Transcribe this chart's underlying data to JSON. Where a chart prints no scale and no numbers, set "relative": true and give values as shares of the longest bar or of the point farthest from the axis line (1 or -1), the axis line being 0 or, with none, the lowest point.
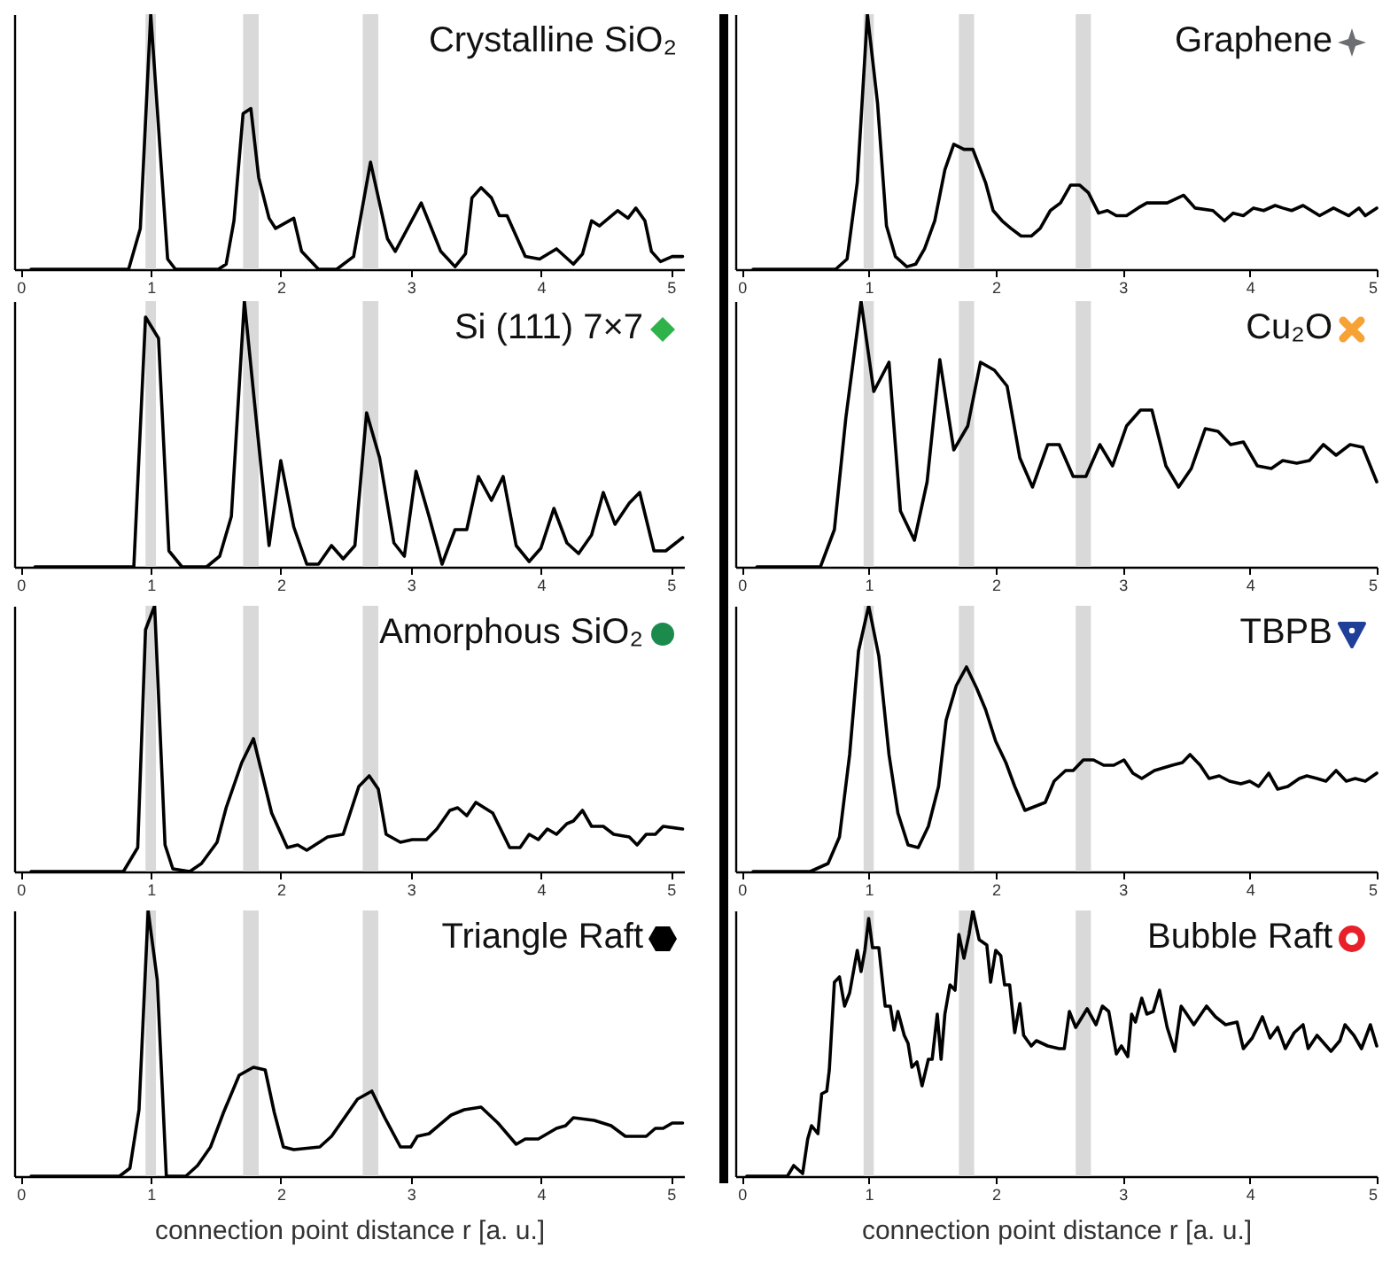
{
  "chart_data": [
    {
      "type": "line",
      "title": "Crystalline SiO₂",
      "relative": true,
      "tick_labels": "x",
      "xlim": [
        -0.05,
        5.1
      ],
      "xticks": [
        0,
        1,
        2,
        3,
        4,
        5
      ],
      "bands": [
        {
          "axis": "x",
          "from": 0.96,
          "to": 1.04,
          "color": "#d9d9d9"
        },
        {
          "axis": "x",
          "from": 1.71,
          "to": 1.83,
          "color": "#d9d9d9"
        },
        {
          "axis": "x",
          "from": 2.63,
          "to": 2.75,
          "color": "#d9d9d9"
        }
      ],
      "x": [
        0.08,
        0.83,
        0.92,
        1.0,
        1.13,
        1.19,
        1.52,
        1.58,
        1.64,
        1.71,
        1.77,
        1.83,
        1.91,
        1.96,
        2.1,
        2.16,
        2.29,
        2.43,
        2.56,
        2.69,
        2.82,
        2.88,
        3.08,
        3.23,
        3.34,
        3.42,
        3.47,
        3.54,
        3.62,
        3.68,
        3.74,
        3.88,
        3.99,
        4.12,
        4.25,
        4.32,
        4.39,
        4.45,
        4.59,
        4.67,
        4.73,
        4.8,
        4.85,
        4.92,
        5.01,
        5.09
      ],
      "series": [
        {
          "color": "#000000",
          "values": [
            0,
            0,
            0.16,
            1,
            0.04,
            0,
            0,
            0.02,
            0.19,
            0.61,
            0.63,
            0.36,
            0.2,
            0.16,
            0.2,
            0.07,
            0,
            0,
            0.05,
            0.42,
            0.12,
            0.07,
            0.26,
            0.07,
            0.01,
            0.06,
            0.28,
            0.32,
            0.28,
            0.21,
            0.21,
            0.05,
            0.04,
            0.08,
            0.02,
            0.06,
            0.19,
            0.17,
            0.23,
            0.2,
            0.24,
            0.19,
            0.07,
            0.03,
            0.05,
            0.05
          ]
        }
      ]
    },
    {
      "type": "line",
      "title": "Graphene",
      "relative": true,
      "tick_labels": "x",
      "xlim": [
        -0.05,
        5.0
      ],
      "xticks": [
        0,
        1,
        2,
        3,
        4,
        5
      ],
      "bands": [
        {
          "axis": "x",
          "from": 0.96,
          "to": 1.04,
          "color": "#d9d9d9"
        },
        {
          "axis": "x",
          "from": 1.71,
          "to": 1.83,
          "color": "#d9d9d9"
        },
        {
          "axis": "x",
          "from": 2.63,
          "to": 2.75,
          "color": "#d9d9d9"
        }
      ],
      "x": [
        0.09,
        0.74,
        0.83,
        0.91,
        0.99,
        1.07,
        1.14,
        1.21,
        1.3,
        1.37,
        1.44,
        1.52,
        1.6,
        1.67,
        1.75,
        1.82,
        1.92,
        1.98,
        2.05,
        2.12,
        2.2,
        2.28,
        2.35,
        2.43,
        2.51,
        2.59,
        2.66,
        2.73,
        2.81,
        2.88,
        2.95,
        3.03,
        3.12,
        3.19,
        3.35,
        3.48,
        3.57,
        3.71,
        3.8,
        3.87,
        3.95,
        4.03,
        4.11,
        4.2,
        4.26,
        4.33,
        4.42,
        4.55,
        4.66,
        4.78,
        4.86,
        4.91,
        5.0
      ],
      "series": [
        {
          "color": "#000000",
          "values": [
            0,
            0,
            0.04,
            0.34,
            1,
            0.65,
            0.17,
            0.05,
            0.01,
            0.02,
            0.08,
            0.19,
            0.39,
            0.49,
            0.47,
            0.47,
            0.34,
            0.23,
            0.19,
            0.16,
            0.13,
            0.13,
            0.16,
            0.23,
            0.26,
            0.33,
            0.33,
            0.3,
            0.22,
            0.23,
            0.21,
            0.21,
            0.24,
            0.26,
            0.26,
            0.29,
            0.24,
            0.23,
            0.19,
            0.22,
            0.21,
            0.24,
            0.23,
            0.25,
            0.24,
            0.23,
            0.25,
            0.21,
            0.24,
            0.21,
            0.24,
            0.21,
            0.24
          ]
        }
      ]
    },
    {
      "type": "line",
      "title": "Si (111) 7×7",
      "relative": true,
      "tick_labels": "x",
      "xlim": [
        -0.05,
        5.1
      ],
      "xticks": [
        0,
        1,
        2,
        3,
        4,
        5
      ],
      "bands": [
        {
          "axis": "x",
          "from": 0.96,
          "to": 1.04,
          "color": "#d9d9d9"
        },
        {
          "axis": "x",
          "from": 1.71,
          "to": 1.83,
          "color": "#d9d9d9"
        },
        {
          "axis": "x",
          "from": 2.63,
          "to": 2.75,
          "color": "#d9d9d9"
        }
      ],
      "x": [
        0.11,
        0.87,
        0.96,
        1.06,
        1.14,
        1.24,
        1.43,
        1.53,
        1.62,
        1.72,
        1.81,
        1.91,
        2.0,
        2.1,
        2.2,
        2.29,
        2.39,
        2.48,
        2.57,
        2.66,
        2.76,
        2.87,
        2.95,
        3.04,
        3.14,
        3.24,
        3.34,
        3.43,
        3.52,
        3.62,
        3.71,
        3.81,
        3.91,
        4.0,
        4.1,
        4.2,
        4.29,
        4.39,
        4.48,
        4.57,
        4.68,
        4.76,
        4.87,
        4.96,
        5.09
      ],
      "series": [
        {
          "color": "#000000",
          "values": [
            0,
            0,
            0.94,
            0.86,
            0.06,
            0,
            0,
            0.04,
            0.19,
            1,
            0.56,
            0.08,
            0.4,
            0.15,
            0.01,
            0.01,
            0.08,
            0.03,
            0.08,
            0.58,
            0.41,
            0.09,
            0.04,
            0.36,
            0.19,
            0.01,
            0.14,
            0.14,
            0.34,
            0.25,
            0.34,
            0.08,
            0.02,
            0.07,
            0.22,
            0.09,
            0.05,
            0.12,
            0.28,
            0.16,
            0.24,
            0.28,
            0.06,
            0.06,
            0.11
          ]
        }
      ]
    },
    {
      "type": "line",
      "title": "Cu₂O",
      "relative": true,
      "tick_labels": "x",
      "xlim": [
        -0.05,
        5.0
      ],
      "xticks": [
        0,
        1,
        2,
        3,
        4,
        5
      ],
      "bands": [
        {
          "axis": "x",
          "from": 0.96,
          "to": 1.04,
          "color": "#d9d9d9"
        },
        {
          "axis": "x",
          "from": 1.71,
          "to": 1.83,
          "color": "#d9d9d9"
        },
        {
          "axis": "x",
          "from": 2.63,
          "to": 2.75,
          "color": "#d9d9d9"
        }
      ],
      "x": [
        0.12,
        0.62,
        0.73,
        0.82,
        0.94,
        1.04,
        1.16,
        1.25,
        1.36,
        1.46,
        1.56,
        1.67,
        1.78,
        1.88,
        1.99,
        2.09,
        2.19,
        2.29,
        2.41,
        2.5,
        2.61,
        2.71,
        2.82,
        2.92,
        3.03,
        3.14,
        3.23,
        3.34,
        3.44,
        3.54,
        3.65,
        3.75,
        3.85,
        3.95,
        4.06,
        4.17,
        4.26,
        4.37,
        4.47,
        4.58,
        4.68,
        4.79,
        4.89,
        5.0
      ],
      "series": [
        {
          "color": "#000000",
          "values": [
            0,
            0,
            0.14,
            0.56,
            1,
            0.66,
            0.77,
            0.21,
            0.1,
            0.32,
            0.78,
            0.44,
            0.53,
            0.77,
            0.74,
            0.68,
            0.41,
            0.3,
            0.46,
            0.46,
            0.34,
            0.34,
            0.46,
            0.38,
            0.53,
            0.59,
            0.59,
            0.38,
            0.3,
            0.37,
            0.52,
            0.51,
            0.46,
            0.47,
            0.38,
            0.37,
            0.4,
            0.39,
            0.4,
            0.46,
            0.42,
            0.46,
            0.45,
            0.32
          ]
        }
      ]
    },
    {
      "type": "line",
      "title": "Amorphous SiO₂",
      "relative": true,
      "tick_labels": "x",
      "xlim": [
        -0.05,
        5.1
      ],
      "xticks": [
        0,
        1,
        2,
        3,
        4,
        5
      ],
      "bands": [
        {
          "axis": "x",
          "from": 0.96,
          "to": 1.04,
          "color": "#d9d9d9"
        },
        {
          "axis": "x",
          "from": 1.71,
          "to": 1.83,
          "color": "#d9d9d9"
        },
        {
          "axis": "x",
          "from": 2.63,
          "to": 2.75,
          "color": "#d9d9d9"
        }
      ],
      "x": [
        0.08,
        0.79,
        0.9,
        0.96,
        1.03,
        1.11,
        1.17,
        1.3,
        1.39,
        1.51,
        1.58,
        1.7,
        1.79,
        1.85,
        1.93,
        2.05,
        2.13,
        2.2,
        2.36,
        2.48,
        2.6,
        2.68,
        2.75,
        2.81,
        2.92,
        3.01,
        3.12,
        3.2,
        3.3,
        3.36,
        3.43,
        3.5,
        3.63,
        3.76,
        3.84,
        3.91,
        3.98,
        4.05,
        4.12,
        4.2,
        4.25,
        4.32,
        4.39,
        4.48,
        4.56,
        4.68,
        4.74,
        4.81,
        4.88,
        4.94,
        5.09
      ],
      "series": [
        {
          "color": "#000000",
          "values": [
            0,
            0,
            0.09,
            0.91,
            1,
            0.1,
            0.01,
            0,
            0.03,
            0.11,
            0.24,
            0.41,
            0.5,
            0.38,
            0.22,
            0.09,
            0.1,
            0.08,
            0.13,
            0.14,
            0.32,
            0.36,
            0.31,
            0.14,
            0.11,
            0.12,
            0.12,
            0.16,
            0.23,
            0.24,
            0.21,
            0.26,
            0.22,
            0.09,
            0.09,
            0.14,
            0.12,
            0.16,
            0.14,
            0.18,
            0.19,
            0.23,
            0.17,
            0.17,
            0.14,
            0.13,
            0.1,
            0.14,
            0.14,
            0.17,
            0.16
          ]
        }
      ]
    },
    {
      "type": "line",
      "title": "TBPB",
      "relative": true,
      "tick_labels": "x",
      "xlim": [
        -0.05,
        5.0
      ],
      "xticks": [
        0,
        1,
        2,
        3,
        4,
        5
      ],
      "bands": [
        {
          "axis": "x",
          "from": 0.96,
          "to": 1.04,
          "color": "#d9d9d9"
        },
        {
          "axis": "x",
          "from": 1.71,
          "to": 1.83,
          "color": "#d9d9d9"
        },
        {
          "axis": "x",
          "from": 2.63,
          "to": 2.75,
          "color": "#d9d9d9"
        }
      ],
      "x": [
        0.09,
        0.54,
        0.68,
        0.77,
        0.85,
        0.92,
        1.0,
        1.08,
        1.16,
        1.23,
        1.31,
        1.39,
        1.47,
        1.55,
        1.61,
        1.69,
        1.77,
        1.85,
        1.92,
        2.0,
        2.08,
        2.15,
        2.23,
        2.39,
        2.46,
        2.55,
        2.61,
        2.69,
        2.77,
        2.85,
        2.93,
        3.01,
        3.08,
        3.15,
        3.25,
        3.39,
        3.47,
        3.53,
        3.61,
        3.68,
        3.76,
        3.84,
        3.93,
        4.0,
        4.07,
        4.15,
        4.22,
        4.3,
        4.39,
        4.45,
        4.53,
        4.6,
        4.68,
        4.76,
        4.83,
        4.91,
        5.0
      ],
      "series": [
        {
          "color": "#000000",
          "values": [
            0,
            0,
            0.03,
            0.13,
            0.44,
            0.83,
            1,
            0.81,
            0.44,
            0.22,
            0.1,
            0.09,
            0.17,
            0.32,
            0.57,
            0.7,
            0.77,
            0.69,
            0.61,
            0.49,
            0.41,
            0.32,
            0.23,
            0.26,
            0.34,
            0.38,
            0.38,
            0.42,
            0.42,
            0.4,
            0.4,
            0.42,
            0.37,
            0.35,
            0.38,
            0.4,
            0.41,
            0.44,
            0.4,
            0.35,
            0.36,
            0.34,
            0.33,
            0.34,
            0.32,
            0.37,
            0.31,
            0.32,
            0.35,
            0.36,
            0.35,
            0.34,
            0.38,
            0.34,
            0.35,
            0.34,
            0.37
          ]
        }
      ]
    },
    {
      "type": "line",
      "title": "Triangle Raft",
      "xlabel": "connection point distance r [a. u.]",
      "relative": true,
      "tick_labels": "x",
      "xlim": [
        -0.05,
        5.1
      ],
      "xticks": [
        0,
        1,
        2,
        3,
        4,
        5
      ],
      "bands": [
        {
          "axis": "x",
          "from": 0.96,
          "to": 1.04,
          "color": "#d9d9d9"
        },
        {
          "axis": "x",
          "from": 1.71,
          "to": 1.83,
          "color": "#d9d9d9"
        },
        {
          "axis": "x",
          "from": 2.63,
          "to": 2.75,
          "color": "#d9d9d9"
        }
      ],
      "x": [
        0.08,
        0.76,
        0.84,
        0.91,
        0.98,
        1.05,
        1.12,
        1.27,
        1.36,
        1.46,
        1.56,
        1.68,
        1.79,
        1.88,
        1.95,
        2.02,
        2.1,
        2.3,
        2.39,
        2.59,
        2.7,
        2.8,
        2.92,
        3.0,
        3.05,
        3.14,
        3.31,
        3.41,
        3.54,
        3.67,
        3.81,
        3.88,
        3.98,
        4.12,
        4.19,
        4.25,
        4.41,
        4.54,
        4.65,
        4.81,
        4.88,
        4.94,
        5.01,
        5.09
      ],
      "series": [
        {
          "color": "#000000",
          "values": [
            0,
            0,
            0.03,
            0.25,
            1,
            0.74,
            0,
            0,
            0.04,
            0.11,
            0.24,
            0.38,
            0.41,
            0.4,
            0.24,
            0.11,
            0.1,
            0.11,
            0.15,
            0.29,
            0.32,
            0.22,
            0.11,
            0.11,
            0.15,
            0.16,
            0.23,
            0.25,
            0.26,
            0.2,
            0.12,
            0.14,
            0.14,
            0.18,
            0.19,
            0.22,
            0.21,
            0.19,
            0.15,
            0.15,
            0.18,
            0.18,
            0.2,
            0.2
          ]
        }
      ]
    },
    {
      "type": "line",
      "title": "Bubble Raft",
      "xlabel": "connection point distance r [a. u.]",
      "relative": true,
      "tick_labels": "x",
      "xlim": [
        -0.05,
        5.0
      ],
      "xticks": [
        0,
        1,
        2,
        3,
        4,
        5
      ],
      "bands": [
        {
          "axis": "x",
          "from": 0.96,
          "to": 1.04,
          "color": "#d9d9d9"
        },
        {
          "axis": "x",
          "from": 1.71,
          "to": 1.83,
          "color": "#d9d9d9"
        },
        {
          "axis": "x",
          "from": 2.63,
          "to": 2.75,
          "color": "#d9d9d9"
        }
      ],
      "x": [
        0.04,
        0.36,
        0.41,
        0.48,
        0.52,
        0.55,
        0.6,
        0.63,
        0.67,
        0.69,
        0.73,
        0.77,
        0.81,
        0.85,
        0.91,
        0.94,
        0.97,
        1.0,
        1.03,
        1.08,
        1.13,
        1.17,
        1.2,
        1.23,
        1.28,
        1.31,
        1.34,
        1.38,
        1.42,
        1.47,
        1.5,
        1.54,
        1.57,
        1.6,
        1.64,
        1.68,
        1.71,
        1.75,
        1.79,
        1.82,
        1.87,
        1.93,
        1.96,
        2.0,
        2.04,
        2.07,
        2.11,
        2.15,
        2.19,
        2.22,
        2.28,
        2.32,
        2.41,
        2.5,
        2.54,
        2.58,
        2.63,
        2.72,
        2.79,
        2.84,
        2.89,
        2.95,
        2.99,
        3.04,
        3.07,
        3.1,
        3.15,
        3.19,
        3.24,
        3.29,
        3.35,
        3.41,
        3.46,
        3.49,
        3.56,
        3.66,
        3.73,
        3.81,
        3.9,
        3.95,
        4.02,
        4.1,
        4.16,
        4.22,
        4.28,
        4.35,
        4.42,
        4.46,
        4.53,
        4.64,
        4.71,
        4.75,
        4.82,
        4.88,
        4.95,
        5.0
      ],
      "series": [
        {
          "color": "#000000",
          "values": [
            0,
            0,
            0.04,
            0.01,
            0.14,
            0.19,
            0.16,
            0.31,
            0.32,
            0.4,
            0.73,
            0.75,
            0.64,
            0.69,
            0.85,
            0.77,
            0.85,
            0.97,
            0.86,
            0.86,
            0.64,
            0.64,
            0.55,
            0.62,
            0.53,
            0.5,
            0.41,
            0.43,
            0.34,
            0.44,
            0.44,
            0.61,
            0.44,
            0.61,
            0.72,
            0.7,
            0.91,
            0.82,
            0.91,
            1,
            0.89,
            0.87,
            0.73,
            0.85,
            0.83,
            0.72,
            0.72,
            0.54,
            0.65,
            0.53,
            0.49,
            0.51,
            0.49,
            0.48,
            0.48,
            0.62,
            0.56,
            0.63,
            0.57,
            0.64,
            0.62,
            0.46,
            0.49,
            0.45,
            0.61,
            0.58,
            0.67,
            0.61,
            0.62,
            0.7,
            0.56,
            0.47,
            0.64,
            0.62,
            0.57,
            0.64,
            0.6,
            0.57,
            0.58,
            0.48,
            0.52,
            0.6,
            0.52,
            0.56,
            0.48,
            0.54,
            0.57,
            0.48,
            0.53,
            0.47,
            0.51,
            0.57,
            0.53,
            0.48,
            0.57,
            0.49
          ]
        }
      ]
    }
  ]
}
